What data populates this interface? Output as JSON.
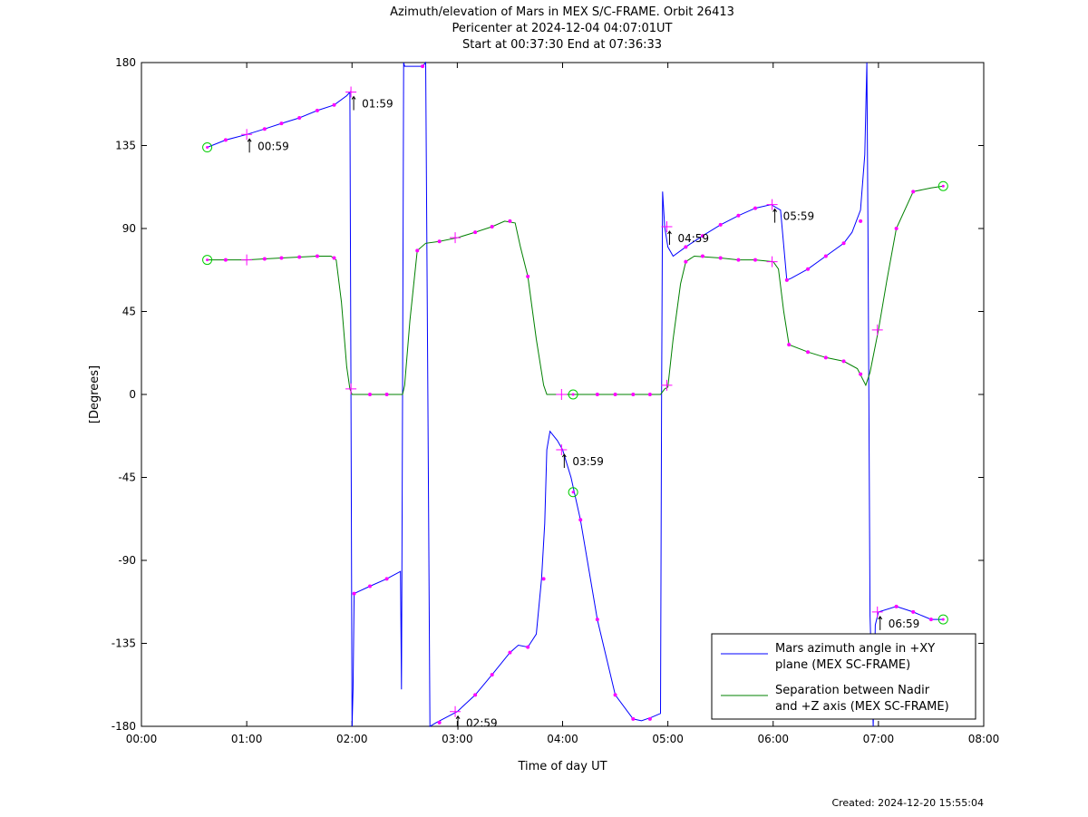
{
  "chart_data": {
    "type": "line",
    "title_lines": [
      "Azimuth/elevation of Mars in MEX S/C-FRAME.  Orbit 26413",
      "Pericenter at 2024-12-04 04:07:01UT",
      "Start at 00:37:30 End at 07:36:33"
    ],
    "xlabel": "Time of day UT",
    "ylabel": "[Degrees]",
    "xlim": [
      0,
      8
    ],
    "ylim": [
      -180,
      180
    ],
    "x_ticks": [
      0,
      1,
      2,
      3,
      4,
      5,
      6,
      7,
      8
    ],
    "x_tick_labels": [
      "00:00",
      "01:00",
      "02:00",
      "03:00",
      "04:00",
      "05:00",
      "06:00",
      "07:00",
      "08:00"
    ],
    "y_ticks": [
      180,
      135,
      90,
      45,
      0,
      -45,
      -90,
      -135,
      -180
    ],
    "y_tick_labels": [
      "180",
      "135",
      "90",
      "45",
      "0",
      "-45",
      "-90",
      "-135",
      "-180"
    ],
    "legend_position": "bottom-right",
    "series": [
      {
        "name": "Mars azimuth angle in +XY plane (MEX SC-FRAME)",
        "legend_lines": [
          "Mars azimuth angle in +XY",
          "plane (MEX SC-FRAME)"
        ],
        "color": "#0000ff",
        "points": [
          [
            0.625,
            134
          ],
          [
            0.8,
            138
          ],
          [
            1.0,
            141
          ],
          [
            1.17,
            144
          ],
          [
            1.33,
            147
          ],
          [
            1.5,
            150
          ],
          [
            1.67,
            154
          ],
          [
            1.83,
            157
          ],
          [
            1.95,
            162
          ],
          [
            1.98,
            164
          ],
          [
            1.99,
            0
          ],
          [
            2.0,
            -180
          ],
          [
            2.01,
            -160
          ],
          [
            2.02,
            -108
          ],
          [
            2.17,
            -104
          ],
          [
            2.33,
            -100
          ],
          [
            2.46,
            -96
          ],
          [
            2.47,
            -160
          ],
          [
            2.48,
            0
          ],
          [
            2.49,
            180
          ],
          [
            2.5,
            178
          ],
          [
            2.67,
            178
          ],
          [
            2.7,
            180
          ],
          [
            2.72,
            0
          ],
          [
            2.74,
            -180
          ],
          [
            2.8,
            -178
          ],
          [
            3.0,
            -172
          ],
          [
            3.17,
            -163
          ],
          [
            3.33,
            -152
          ],
          [
            3.5,
            -140
          ],
          [
            3.58,
            -136
          ],
          [
            3.67,
            -137
          ],
          [
            3.75,
            -130
          ],
          [
            3.8,
            -100
          ],
          [
            3.83,
            -70
          ],
          [
            3.85,
            -30
          ],
          [
            3.88,
            -20
          ],
          [
            3.95,
            -25
          ],
          [
            4.0,
            -30
          ],
          [
            4.08,
            -45
          ],
          [
            4.17,
            -68
          ],
          [
            4.33,
            -122
          ],
          [
            4.5,
            -163
          ],
          [
            4.67,
            -176
          ],
          [
            4.75,
            -177
          ],
          [
            4.85,
            -175
          ],
          [
            4.93,
            -173
          ],
          [
            4.94,
            0
          ],
          [
            4.95,
            110
          ],
          [
            4.97,
            91
          ],
          [
            5.0,
            80
          ],
          [
            5.05,
            75
          ],
          [
            5.17,
            80
          ],
          [
            5.33,
            86
          ],
          [
            5.5,
            92
          ],
          [
            5.67,
            97
          ],
          [
            5.83,
            101
          ],
          [
            5.98,
            103
          ],
          [
            6.07,
            100
          ],
          [
            6.13,
            62
          ],
          [
            6.17,
            63
          ],
          [
            6.33,
            68
          ],
          [
            6.5,
            75
          ],
          [
            6.67,
            82
          ],
          [
            6.75,
            88
          ],
          [
            6.83,
            100
          ],
          [
            6.87,
            130
          ],
          [
            6.89,
            180
          ],
          [
            6.9,
            90
          ],
          [
            6.92,
            -120
          ],
          [
            6.95,
            -180
          ],
          [
            6.97,
            -125
          ],
          [
            7.0,
            -118
          ],
          [
            7.17,
            -115
          ],
          [
            7.33,
            -118
          ],
          [
            7.5,
            -122
          ],
          [
            7.615,
            -122
          ]
        ]
      },
      {
        "name": "Separation between Nadir and +Z axis (MEX SC-FRAME)",
        "legend_lines": [
          "Separation between Nadir",
          "and +Z axis (MEX SC-FRAME)"
        ],
        "color": "#008000",
        "points": [
          [
            0.625,
            73
          ],
          [
            0.8,
            73
          ],
          [
            1.0,
            73
          ],
          [
            1.17,
            73.5
          ],
          [
            1.33,
            74
          ],
          [
            1.5,
            74.5
          ],
          [
            1.67,
            75
          ],
          [
            1.8,
            75
          ],
          [
            1.85,
            73
          ],
          [
            1.9,
            50
          ],
          [
            1.95,
            15
          ],
          [
            1.98,
            3
          ],
          [
            2.0,
            0
          ],
          [
            2.17,
            0
          ],
          [
            2.33,
            0
          ],
          [
            2.48,
            0
          ],
          [
            2.5,
            5
          ],
          [
            2.55,
            40
          ],
          [
            2.62,
            78
          ],
          [
            2.7,
            82
          ],
          [
            2.83,
            83
          ],
          [
            3.0,
            85
          ],
          [
            3.17,
            88
          ],
          [
            3.33,
            91
          ],
          [
            3.45,
            94
          ],
          [
            3.55,
            93
          ],
          [
            3.6,
            80
          ],
          [
            3.67,
            64
          ],
          [
            3.75,
            30
          ],
          [
            3.82,
            5
          ],
          [
            3.85,
            0
          ],
          [
            4.0,
            0
          ],
          [
            4.17,
            0
          ],
          [
            4.33,
            0
          ],
          [
            4.5,
            0
          ],
          [
            4.67,
            0
          ],
          [
            4.8,
            0
          ],
          [
            4.93,
            0
          ],
          [
            4.97,
            3
          ],
          [
            5.0,
            4
          ],
          [
            5.05,
            30
          ],
          [
            5.12,
            60
          ],
          [
            5.17,
            72
          ],
          [
            5.25,
            75
          ],
          [
            5.5,
            74
          ],
          [
            5.67,
            73
          ],
          [
            5.83,
            73
          ],
          [
            6.0,
            72
          ],
          [
            6.05,
            68
          ],
          [
            6.1,
            45
          ],
          [
            6.15,
            27
          ],
          [
            6.33,
            23
          ],
          [
            6.5,
            20
          ],
          [
            6.67,
            18
          ],
          [
            6.8,
            14
          ],
          [
            6.88,
            5
          ],
          [
            6.92,
            12
          ],
          [
            7.0,
            35
          ],
          [
            7.08,
            62
          ],
          [
            7.17,
            90
          ],
          [
            7.33,
            110
          ],
          [
            7.5,
            112
          ],
          [
            7.615,
            113
          ]
        ]
      }
    ],
    "circle_markers": [
      [
        0.625,
        134
      ],
      [
        0.625,
        73
      ],
      [
        4.1,
        0
      ],
      [
        4.1,
        -53
      ],
      [
        7.615,
        113
      ],
      [
        7.615,
        -122
      ]
    ],
    "cross_markers": [
      [
        1.0,
        141
      ],
      [
        1.0,
        73
      ],
      [
        1.99,
        164
      ],
      [
        1.99,
        3
      ],
      [
        2.98,
        -172
      ],
      [
        2.98,
        85
      ],
      [
        3.99,
        -30
      ],
      [
        3.99,
        0
      ],
      [
        4.99,
        91
      ],
      [
        4.99,
        5
      ],
      [
        5.99,
        103
      ],
      [
        5.99,
        72
      ],
      [
        6.99,
        -118
      ],
      [
        6.99,
        35
      ]
    ],
    "dot_markers": [
      [
        0.8,
        138
      ],
      [
        1.17,
        144
      ],
      [
        1.33,
        147
      ],
      [
        1.5,
        150
      ],
      [
        1.67,
        154
      ],
      [
        1.83,
        157
      ],
      [
        0.8,
        73
      ],
      [
        1.17,
        73.5
      ],
      [
        1.33,
        74
      ],
      [
        1.5,
        74.5
      ],
      [
        1.67,
        75
      ],
      [
        1.83,
        74
      ],
      [
        2.02,
        -108
      ],
      [
        2.17,
        -104
      ],
      [
        2.33,
        -100
      ],
      [
        2.17,
        0
      ],
      [
        2.33,
        0
      ],
      [
        2.62,
        78
      ],
      [
        2.67,
        178
      ],
      [
        2.83,
        -178
      ],
      [
        3.17,
        -163
      ],
      [
        3.33,
        -152
      ],
      [
        3.5,
        -140
      ],
      [
        3.67,
        -137
      ],
      [
        3.82,
        -100
      ],
      [
        2.83,
        83
      ],
      [
        3.17,
        88
      ],
      [
        3.33,
        91
      ],
      [
        3.5,
        94
      ],
      [
        3.67,
        64
      ],
      [
        4.17,
        -68
      ],
      [
        4.33,
        -122
      ],
      [
        4.5,
        -163
      ],
      [
        4.67,
        -176
      ],
      [
        4.83,
        -176
      ],
      [
        4.33,
        0
      ],
      [
        4.5,
        0
      ],
      [
        4.67,
        0
      ],
      [
        4.83,
        0
      ],
      [
        5.17,
        80
      ],
      [
        5.33,
        86
      ],
      [
        5.5,
        92
      ],
      [
        5.67,
        97
      ],
      [
        5.83,
        101
      ],
      [
        5.17,
        72
      ],
      [
        5.33,
        75
      ],
      [
        5.5,
        74
      ],
      [
        5.67,
        73
      ],
      [
        5.83,
        73
      ],
      [
        6.13,
        62
      ],
      [
        6.33,
        68
      ],
      [
        6.5,
        75
      ],
      [
        6.67,
        82
      ],
      [
        6.83,
        94
      ],
      [
        6.15,
        27
      ],
      [
        6.33,
        23
      ],
      [
        6.5,
        20
      ],
      [
        6.67,
        18
      ],
      [
        6.83,
        11
      ],
      [
        7.17,
        -115
      ],
      [
        7.33,
        -118
      ],
      [
        7.5,
        -122
      ],
      [
        7.17,
        90
      ],
      [
        7.33,
        110
      ]
    ],
    "annotations": [
      {
        "text": "00:59",
        "x": 1.0,
        "y": 141
      },
      {
        "text": "01:59",
        "x": 1.99,
        "y": 164
      },
      {
        "text": "02:59",
        "x": 2.98,
        "y": -172
      },
      {
        "text": "03:59",
        "x": 3.99,
        "y": -30
      },
      {
        "text": "04:59",
        "x": 4.99,
        "y": 91
      },
      {
        "text": "05:59",
        "x": 5.99,
        "y": 103
      },
      {
        "text": "06:59",
        "x": 6.99,
        "y": -118
      }
    ],
    "created": "Created: 2024-12-20 15:55:04"
  },
  "colors": {
    "marker_magenta": "#ff00ff",
    "marker_circle": "#00cc00",
    "axis": "#000000"
  }
}
